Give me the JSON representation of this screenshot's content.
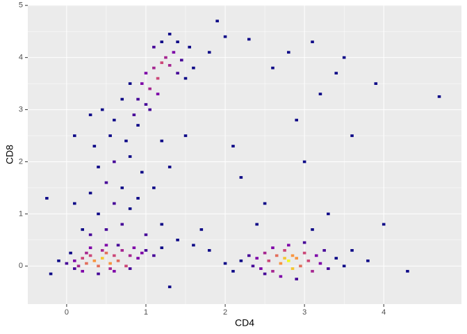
{
  "chart_data": {
    "type": "bin2d",
    "x_label": "CD4",
    "y_label": "CD8",
    "xlim": [
      -0.49,
      4.98
    ],
    "ylim": [
      -0.73,
      5.01
    ],
    "xticks": [
      0,
      1,
      2,
      3,
      4
    ],
    "yticks": [
      0,
      1,
      2,
      3,
      4,
      5
    ],
    "grid": true,
    "panel_color": "#ebebeb",
    "colors": [
      "#0d0887",
      "#7e03a8",
      "#cc4778",
      "#f89540",
      "#f0f921"
    ],
    "cells": [
      {
        "x": 0.0,
        "y": 0.05,
        "count": 2
      },
      {
        "x": 0.1,
        "y": 0.1,
        "count": 3
      },
      {
        "x": 0.15,
        "y": 0.0,
        "count": 4
      },
      {
        "x": 0.2,
        "y": 0.15,
        "count": 5
      },
      {
        "x": 0.25,
        "y": 0.05,
        "count": 6
      },
      {
        "x": 0.3,
        "y": 0.2,
        "count": 5
      },
      {
        "x": 0.35,
        "y": 0.1,
        "count": 7
      },
      {
        "x": 0.4,
        "y": 0.0,
        "count": 6
      },
      {
        "x": 0.45,
        "y": 0.15,
        "count": 8
      },
      {
        "x": 0.5,
        "y": 0.25,
        "count": 6
      },
      {
        "x": 0.55,
        "y": 0.05,
        "count": 7
      },
      {
        "x": 0.6,
        "y": 0.2,
        "count": 5
      },
      {
        "x": 0.65,
        "y": 0.1,
        "count": 6
      },
      {
        "x": 0.7,
        "y": 0.3,
        "count": 4
      },
      {
        "x": 0.75,
        "y": 0.0,
        "count": 5
      },
      {
        "x": 0.8,
        "y": 0.2,
        "count": 4
      },
      {
        "x": 0.85,
        "y": 0.35,
        "count": 3
      },
      {
        "x": 0.9,
        "y": 0.15,
        "count": 3
      },
      {
        "x": 0.95,
        "y": 0.25,
        "count": 3
      },
      {
        "x": 1.0,
        "y": 0.3,
        "count": 2
      },
      {
        "x": 0.2,
        "y": -0.1,
        "count": 3
      },
      {
        "x": 0.4,
        "y": -0.15,
        "count": 2
      },
      {
        "x": 0.6,
        "y": -0.1,
        "count": 3
      },
      {
        "x": 0.3,
        "y": 0.35,
        "count": 3
      },
      {
        "x": 0.5,
        "y": 0.4,
        "count": 3
      },
      {
        "x": 0.1,
        "y": -0.05,
        "count": 2
      },
      {
        "x": -0.1,
        "y": 0.1,
        "count": 1
      },
      {
        "x": -0.2,
        "y": -0.15,
        "count": 1
      },
      {
        "x": 0.8,
        "y": -0.05,
        "count": 2
      },
      {
        "x": 1.1,
        "y": 0.2,
        "count": 2
      },
      {
        "x": 1.2,
        "y": 0.35,
        "count": 1
      },
      {
        "x": 0.65,
        "y": 0.4,
        "count": 2
      },
      {
        "x": 0.05,
        "y": 0.25,
        "count": 1
      },
      {
        "x": 0.45,
        "y": 0.3,
        "count": 4
      },
      {
        "x": 0.25,
        "y": 0.25,
        "count": 4
      },
      {
        "x": 0.55,
        "y": -0.05,
        "count": 4
      },
      {
        "x": 2.2,
        "y": 0.1,
        "count": 1
      },
      {
        "x": 2.3,
        "y": 0.2,
        "count": 2
      },
      {
        "x": 2.35,
        "y": 0.0,
        "count": 2
      },
      {
        "x": 2.4,
        "y": 0.15,
        "count": 3
      },
      {
        "x": 2.45,
        "y": -0.05,
        "count": 3
      },
      {
        "x": 2.5,
        "y": 0.25,
        "count": 4
      },
      {
        "x": 2.55,
        "y": 0.1,
        "count": 5
      },
      {
        "x": 2.6,
        "y": -0.1,
        "count": 4
      },
      {
        "x": 2.65,
        "y": 0.2,
        "count": 6
      },
      {
        "x": 2.7,
        "y": 0.05,
        "count": 7
      },
      {
        "x": 2.75,
        "y": 0.3,
        "count": 5
      },
      {
        "x": 2.8,
        "y": 0.1,
        "count": 9
      },
      {
        "x": 2.85,
        "y": -0.05,
        "count": 8
      },
      {
        "x": 2.9,
        "y": 0.15,
        "count": 7
      },
      {
        "x": 2.95,
        "y": 0.0,
        "count": 6
      },
      {
        "x": 3.0,
        "y": 0.25,
        "count": 5
      },
      {
        "x": 3.05,
        "y": 0.1,
        "count": 5
      },
      {
        "x": 3.1,
        "y": -0.1,
        "count": 4
      },
      {
        "x": 3.15,
        "y": 0.2,
        "count": 3
      },
      {
        "x": 3.2,
        "y": 0.05,
        "count": 3
      },
      {
        "x": 3.25,
        "y": 0.3,
        "count": 2
      },
      {
        "x": 3.3,
        "y": -0.05,
        "count": 2
      },
      {
        "x": 3.4,
        "y": 0.15,
        "count": 1
      },
      {
        "x": 3.5,
        "y": 0.0,
        "count": 1
      },
      {
        "x": 2.7,
        "y": -0.2,
        "count": 3
      },
      {
        "x": 2.9,
        "y": -0.25,
        "count": 2
      },
      {
        "x": 2.8,
        "y": 0.4,
        "count": 3
      },
      {
        "x": 2.6,
        "y": 0.35,
        "count": 3
      },
      {
        "x": 3.0,
        "y": 0.45,
        "count": 2
      },
      {
        "x": 2.5,
        "y": -0.15,
        "count": 2
      },
      {
        "x": 3.6,
        "y": 0.3,
        "count": 1
      },
      {
        "x": 3.8,
        "y": 0.1,
        "count": 1
      },
      {
        "x": 2.0,
        "y": 0.05,
        "count": 1
      },
      {
        "x": 2.1,
        "y": -0.1,
        "count": 1
      },
      {
        "x": 2.75,
        "y": 0.15,
        "count": 8
      },
      {
        "x": 2.85,
        "y": 0.2,
        "count": 7
      },
      {
        "x": 0.9,
        "y": 3.2,
        "count": 2
      },
      {
        "x": 0.95,
        "y": 3.5,
        "count": 3
      },
      {
        "x": 1.0,
        "y": 3.7,
        "count": 3
      },
      {
        "x": 1.05,
        "y": 3.4,
        "count": 4
      },
      {
        "x": 1.1,
        "y": 3.8,
        "count": 4
      },
      {
        "x": 1.15,
        "y": 3.6,
        "count": 5
      },
      {
        "x": 1.2,
        "y": 3.9,
        "count": 5
      },
      {
        "x": 1.25,
        "y": 4.0,
        "count": 4
      },
      {
        "x": 1.3,
        "y": 3.85,
        "count": 4
      },
      {
        "x": 1.35,
        "y": 4.1,
        "count": 3
      },
      {
        "x": 1.4,
        "y": 3.7,
        "count": 2
      },
      {
        "x": 1.45,
        "y": 3.95,
        "count": 2
      },
      {
        "x": 1.5,
        "y": 3.6,
        "count": 1
      },
      {
        "x": 1.1,
        "y": 4.2,
        "count": 2
      },
      {
        "x": 1.2,
        "y": 4.3,
        "count": 1
      },
      {
        "x": 1.0,
        "y": 3.1,
        "count": 2
      },
      {
        "x": 0.85,
        "y": 2.9,
        "count": 2
      },
      {
        "x": 1.05,
        "y": 3.0,
        "count": 2
      },
      {
        "x": 1.15,
        "y": 3.3,
        "count": 3
      },
      {
        "x": 1.3,
        "y": 4.45,
        "count": 1
      },
      {
        "x": 0.8,
        "y": 3.5,
        "count": 1
      },
      {
        "x": 1.4,
        "y": 4.3,
        "count": 1
      },
      {
        "x": 1.6,
        "y": 3.8,
        "count": 1
      },
      {
        "x": 1.55,
        "y": 4.2,
        "count": 1
      },
      {
        "x": 0.3,
        "y": 0.6,
        "count": 2
      },
      {
        "x": 0.5,
        "y": 0.7,
        "count": 2
      },
      {
        "x": 0.7,
        "y": 0.8,
        "count": 2
      },
      {
        "x": 0.4,
        "y": 1.0,
        "count": 1
      },
      {
        "x": 0.6,
        "y": 1.2,
        "count": 2
      },
      {
        "x": 0.8,
        "y": 1.1,
        "count": 1
      },
      {
        "x": 0.3,
        "y": 1.4,
        "count": 1
      },
      {
        "x": 0.5,
        "y": 1.6,
        "count": 2
      },
      {
        "x": 0.7,
        "y": 1.5,
        "count": 1
      },
      {
        "x": 0.9,
        "y": 1.3,
        "count": 1
      },
      {
        "x": 0.4,
        "y": 1.9,
        "count": 1
      },
      {
        "x": 0.6,
        "y": 2.0,
        "count": 2
      },
      {
        "x": 0.8,
        "y": 2.1,
        "count": 1
      },
      {
        "x": 0.35,
        "y": 2.3,
        "count": 1
      },
      {
        "x": 0.55,
        "y": 2.5,
        "count": 1
      },
      {
        "x": 0.75,
        "y": 2.4,
        "count": 1
      },
      {
        "x": 0.9,
        "y": 2.7,
        "count": 1
      },
      {
        "x": 0.6,
        "y": 2.8,
        "count": 1
      },
      {
        "x": 0.45,
        "y": 3.0,
        "count": 1
      },
      {
        "x": 0.7,
        "y": 3.2,
        "count": 1
      },
      {
        "x": 0.3,
        "y": 2.9,
        "count": 1
      },
      {
        "x": 0.1,
        "y": 2.5,
        "count": 1
      },
      {
        "x": 1.0,
        "y": 0.6,
        "count": 2
      },
      {
        "x": 1.2,
        "y": 0.8,
        "count": 1
      },
      {
        "x": 1.4,
        "y": 0.5,
        "count": 1
      },
      {
        "x": 1.6,
        "y": 0.4,
        "count": 1
      },
      {
        "x": 1.8,
        "y": 0.3,
        "count": 1
      },
      {
        "x": 1.1,
        "y": 1.5,
        "count": 1
      },
      {
        "x": 1.3,
        "y": 1.9,
        "count": 1
      },
      {
        "x": 1.5,
        "y": 2.5,
        "count": 1
      },
      {
        "x": 1.7,
        "y": 0.7,
        "count": 1
      },
      {
        "x": 0.2,
        "y": 0.7,
        "count": 1
      },
      {
        "x": 0.1,
        "y": 1.2,
        "count": 1
      },
      {
        "x": 0.95,
        "y": 1.8,
        "count": 1
      },
      {
        "x": 1.2,
        "y": 2.4,
        "count": 1
      },
      {
        "x": 1.9,
        "y": 4.7,
        "count": 1
      },
      {
        "x": 2.0,
        "y": 4.4,
        "count": 1
      },
      {
        "x": 2.3,
        "y": 4.35,
        "count": 1
      },
      {
        "x": 2.8,
        "y": 4.1,
        "count": 1
      },
      {
        "x": 3.1,
        "y": 4.3,
        "count": 1
      },
      {
        "x": 3.5,
        "y": 4.0,
        "count": 1
      },
      {
        "x": 4.7,
        "y": 3.25,
        "count": 1
      },
      {
        "x": 3.9,
        "y": 3.5,
        "count": 1
      },
      {
        "x": 2.6,
        "y": 3.8,
        "count": 1
      },
      {
        "x": 3.2,
        "y": 3.3,
        "count": 1
      },
      {
        "x": 2.1,
        "y": 2.3,
        "count": 1
      },
      {
        "x": 2.5,
        "y": 1.2,
        "count": 1
      },
      {
        "x": 3.0,
        "y": 2.0,
        "count": 1
      },
      {
        "x": 3.6,
        "y": 2.5,
        "count": 1
      },
      {
        "x": 2.4,
        "y": 0.8,
        "count": 1
      },
      {
        "x": 3.3,
        "y": 1.0,
        "count": 1
      },
      {
        "x": 4.3,
        "y": -0.1,
        "count": 1
      },
      {
        "x": 4.0,
        "y": 0.8,
        "count": 1
      },
      {
        "x": 1.8,
        "y": 4.1,
        "count": 1
      },
      {
        "x": 3.4,
        "y": 3.7,
        "count": 1
      },
      {
        "x": 2.2,
        "y": 1.7,
        "count": 1
      },
      {
        "x": 2.9,
        "y": 2.8,
        "count": 1
      },
      {
        "x": -0.25,
        "y": 1.3,
        "count": 1
      },
      {
        "x": 1.3,
        "y": -0.4,
        "count": 1
      },
      {
        "x": 3.1,
        "y": 0.7,
        "count": 1
      }
    ]
  }
}
